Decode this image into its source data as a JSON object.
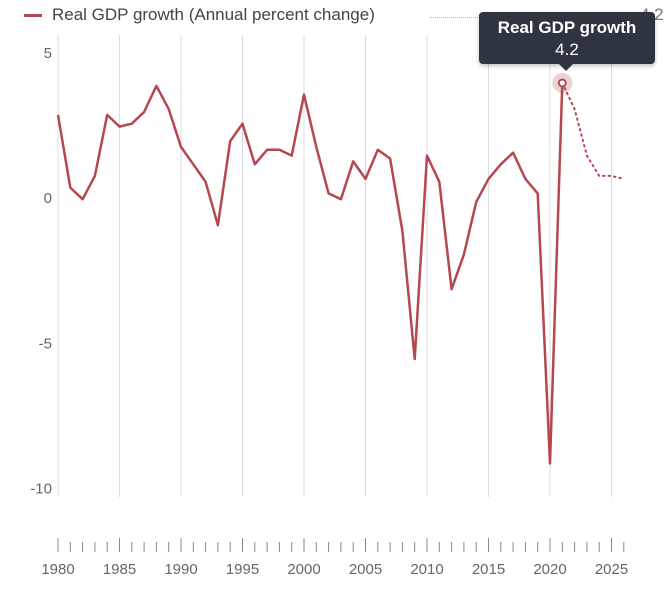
{
  "legend": {
    "label": "Real GDP growth (Annual percent change)",
    "value": "4.2"
  },
  "tooltip": {
    "title": "Real GDP growth",
    "value": "4.2"
  },
  "colors": {
    "series": "#b5484f",
    "grid": "#dcdcdc",
    "axis_text": "#666666"
  },
  "chart_data": {
    "type": "line",
    "series": [
      {
        "name": "Real GDP growth (Annual percent change)",
        "x": [
          1980,
          1981,
          1982,
          1983,
          1984,
          1985,
          1986,
          1987,
          1988,
          1989,
          1990,
          1991,
          1992,
          1993,
          1994,
          1995,
          1996,
          1997,
          1998,
          1999,
          2000,
          2001,
          2002,
          2003,
          2004,
          2005,
          2006,
          2007,
          2008,
          2009,
          2010,
          2011,
          2012,
          2013,
          2014,
          2015,
          2016,
          2017,
          2018,
          2019,
          2020,
          2021
        ],
        "values": [
          3.1,
          0.6,
          0.2,
          1.0,
          3.1,
          2.7,
          2.8,
          3.2,
          4.1,
          3.3,
          2.0,
          1.4,
          0.8,
          -0.7,
          2.2,
          2.8,
          1.4,
          1.9,
          1.9,
          1.7,
          3.8,
          2.0,
          0.4,
          0.2,
          1.5,
          0.9,
          1.9,
          1.6,
          -0.9,
          -5.3,
          1.7,
          0.8,
          -2.9,
          -1.7,
          0.1,
          0.9,
          1.4,
          1.8,
          0.9,
          0.4,
          -8.9,
          4.2
        ],
        "projection": {
          "x": [
            2021,
            2022,
            2023,
            2024,
            2025,
            2026
          ],
          "values": [
            4.2,
            3.3,
            1.7,
            1.0,
            1.0,
            0.9
          ]
        }
      }
    ],
    "xticks": [
      1980,
      1985,
      1990,
      1995,
      2000,
      2005,
      2010,
      2015,
      2020,
      2025
    ],
    "yticks": [
      5,
      0,
      -5,
      -10
    ],
    "xlim": [
      1980,
      2026
    ],
    "ylim": [
      -10,
      5
    ],
    "grid": true,
    "legend_position": "top-left",
    "highlight": {
      "x": 2021,
      "value": 4.2
    }
  }
}
